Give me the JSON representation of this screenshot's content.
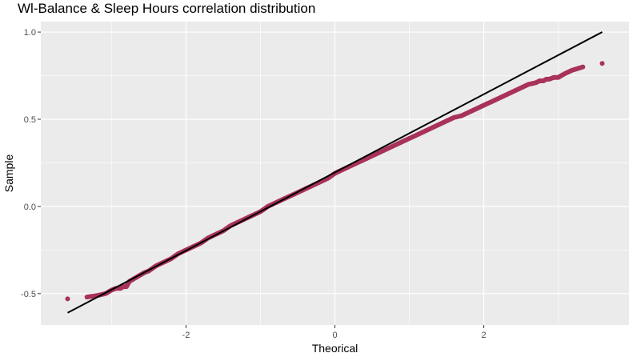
{
  "chart_data": {
    "type": "scatter",
    "title": "Wl-Balance & Sleep Hours correlation distribution",
    "xlabel": "Theorical",
    "ylabel": "Sample",
    "xlim": [
      -3.95,
      3.95
    ],
    "ylim": [
      -0.68,
      1.06
    ],
    "x_ticks": [
      -2,
      0,
      2
    ],
    "x_tick_labels": [
      "-2",
      "0",
      "2"
    ],
    "y_ticks": [
      -0.5,
      0.0,
      0.5,
      1.0
    ],
    "y_tick_labels": [
      "-0.5",
      "0.0",
      "0.5",
      "1.0"
    ],
    "grid": true,
    "legend": "none",
    "colors": {
      "panel_bg": "#ebebeb",
      "grid": "#ffffff",
      "points": "#a8325a",
      "reference_line": "#000000"
    },
    "reference_line": {
      "x": [
        -3.59,
        3.59
      ],
      "y": [
        -0.61,
        1.0
      ]
    },
    "series": [
      {
        "x": [
          -3.59,
          -3.33,
          -3.18,
          -3.08,
          -3.0,
          -2.94,
          -2.88,
          -2.84,
          -2.8,
          -2.76,
          -2.72,
          -2.68,
          -2.64,
          -2.6,
          -2.56,
          -2.5,
          -2.4,
          -2.3,
          -2.2,
          -2.1,
          -2.0,
          -1.9,
          -1.8,
          -1.7,
          -1.6,
          -1.5,
          -1.4,
          -1.3,
          -1.2,
          -1.1,
          -1.0,
          -0.9,
          -0.8,
          -0.7,
          -0.6,
          -0.5,
          -0.4,
          -0.3,
          -0.2,
          -0.1,
          0.0,
          0.1,
          0.2,
          0.3,
          0.4,
          0.5,
          0.6,
          0.7,
          0.8,
          0.9,
          1.0,
          1.1,
          1.2,
          1.3,
          1.4,
          1.5,
          1.6,
          1.7,
          1.8,
          1.9,
          2.0,
          2.1,
          2.2,
          2.3,
          2.4,
          2.5,
          2.6,
          2.7,
          2.75,
          2.8,
          2.84,
          2.88,
          2.94,
          3.0,
          3.08,
          3.18,
          3.33,
          3.59
        ],
        "y": [
          -0.53,
          -0.52,
          -0.51,
          -0.5,
          -0.48,
          -0.47,
          -0.47,
          -0.46,
          -0.46,
          -0.43,
          -0.42,
          -0.41,
          -0.4,
          -0.39,
          -0.38,
          -0.37,
          -0.34,
          -0.32,
          -0.3,
          -0.27,
          -0.25,
          -0.23,
          -0.21,
          -0.18,
          -0.16,
          -0.14,
          -0.11,
          -0.09,
          -0.07,
          -0.05,
          -0.03,
          0.0,
          0.02,
          0.04,
          0.06,
          0.08,
          0.1,
          0.12,
          0.14,
          0.16,
          0.19,
          0.21,
          0.23,
          0.25,
          0.27,
          0.29,
          0.31,
          0.33,
          0.35,
          0.37,
          0.39,
          0.41,
          0.43,
          0.45,
          0.47,
          0.49,
          0.51,
          0.52,
          0.54,
          0.56,
          0.58,
          0.6,
          0.62,
          0.64,
          0.66,
          0.68,
          0.7,
          0.71,
          0.72,
          0.72,
          0.73,
          0.73,
          0.74,
          0.74,
          0.76,
          0.78,
          0.8,
          0.82
        ]
      }
    ]
  }
}
